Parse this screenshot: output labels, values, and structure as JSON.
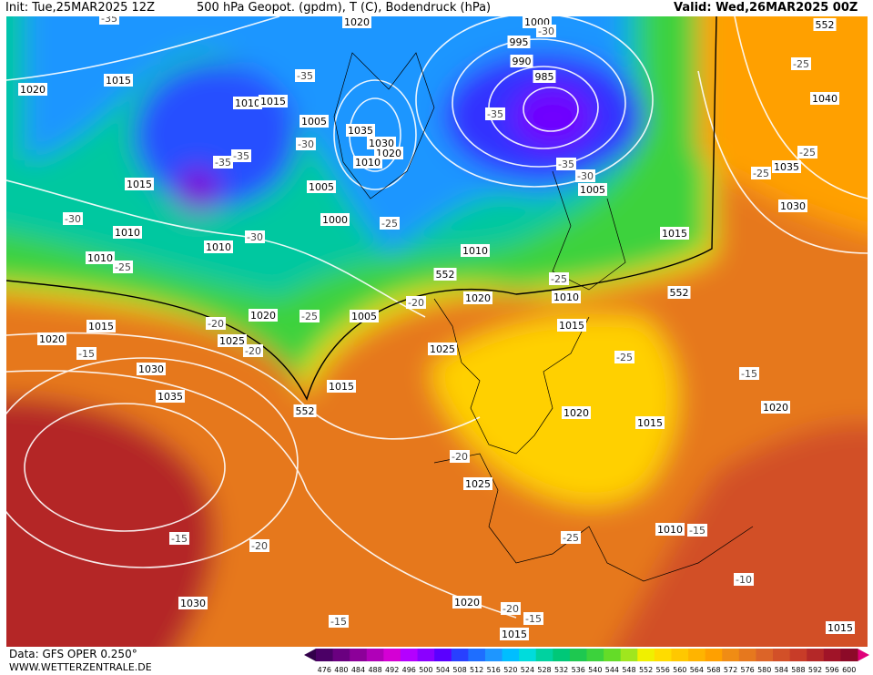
{
  "header": {
    "init": "Init: Tue,25MAR2025 12Z",
    "title": "500 hPa Geopot. (gpdm), T (C), Bodendruck (hPa)",
    "valid": "Valid: Wed,26MAR2025 00Z"
  },
  "footer": {
    "data_source": "Data: GFS OPER 0.250°",
    "website": "WWW.WETTERZENTRALE.DE"
  },
  "map": {
    "pressure_labels": [
      1020,
      1000,
      995,
      990,
      985,
      1020,
      1015,
      1010,
      1015,
      1005,
      1035,
      1030,
      1020,
      1010,
      1015,
      1005,
      1000,
      1005,
      1040,
      1035,
      1030,
      1010,
      1010,
      1010,
      1010,
      1015,
      1020,
      1010,
      1015,
      1020,
      1005,
      1015,
      1020,
      1025,
      1025,
      1030,
      1035,
      1015,
      1020,
      1015,
      1020,
      1025,
      1010,
      1020,
      1030,
      1015,
      1015
    ],
    "height_labels": [
      552,
      552,
      552,
      552
    ],
    "temperature_labels": [
      -35,
      -30,
      -35,
      -35,
      -30,
      -35,
      -35,
      -35,
      -30,
      -30,
      -25,
      -30,
      -25,
      -25,
      -20,
      -25,
      -20,
      -15,
      -20,
      -25,
      -15,
      -20,
      -15,
      -20,
      -25,
      -15,
      -10,
      -20,
      -15,
      -15,
      -25,
      -25,
      -25
    ]
  },
  "legend": {
    "ticks": [
      476,
      480,
      484,
      488,
      492,
      496,
      500,
      504,
      508,
      512,
      516,
      520,
      524,
      528,
      532,
      536,
      540,
      544,
      548,
      552,
      556,
      560,
      564,
      568,
      572,
      576,
      580,
      584,
      588,
      592,
      596,
      600
    ],
    "colors": [
      "#4b0066",
      "#6a0080",
      "#8c0099",
      "#b000b8",
      "#d400d4",
      "#b400ff",
      "#8a00ff",
      "#5a00ff",
      "#2840ff",
      "#1e6eff",
      "#1e96ff",
      "#00beff",
      "#00dcdc",
      "#00d2a0",
      "#00c878",
      "#1ec850",
      "#3cd23c",
      "#64dc28",
      "#a0e61e",
      "#f0f000",
      "#ffdc00",
      "#ffc800",
      "#ffb400",
      "#ffa000",
      "#f08c14",
      "#e6781e",
      "#dc6428",
      "#d25028",
      "#c83c28",
      "#b42828",
      "#a01428",
      "#8c0a28"
    ]
  }
}
